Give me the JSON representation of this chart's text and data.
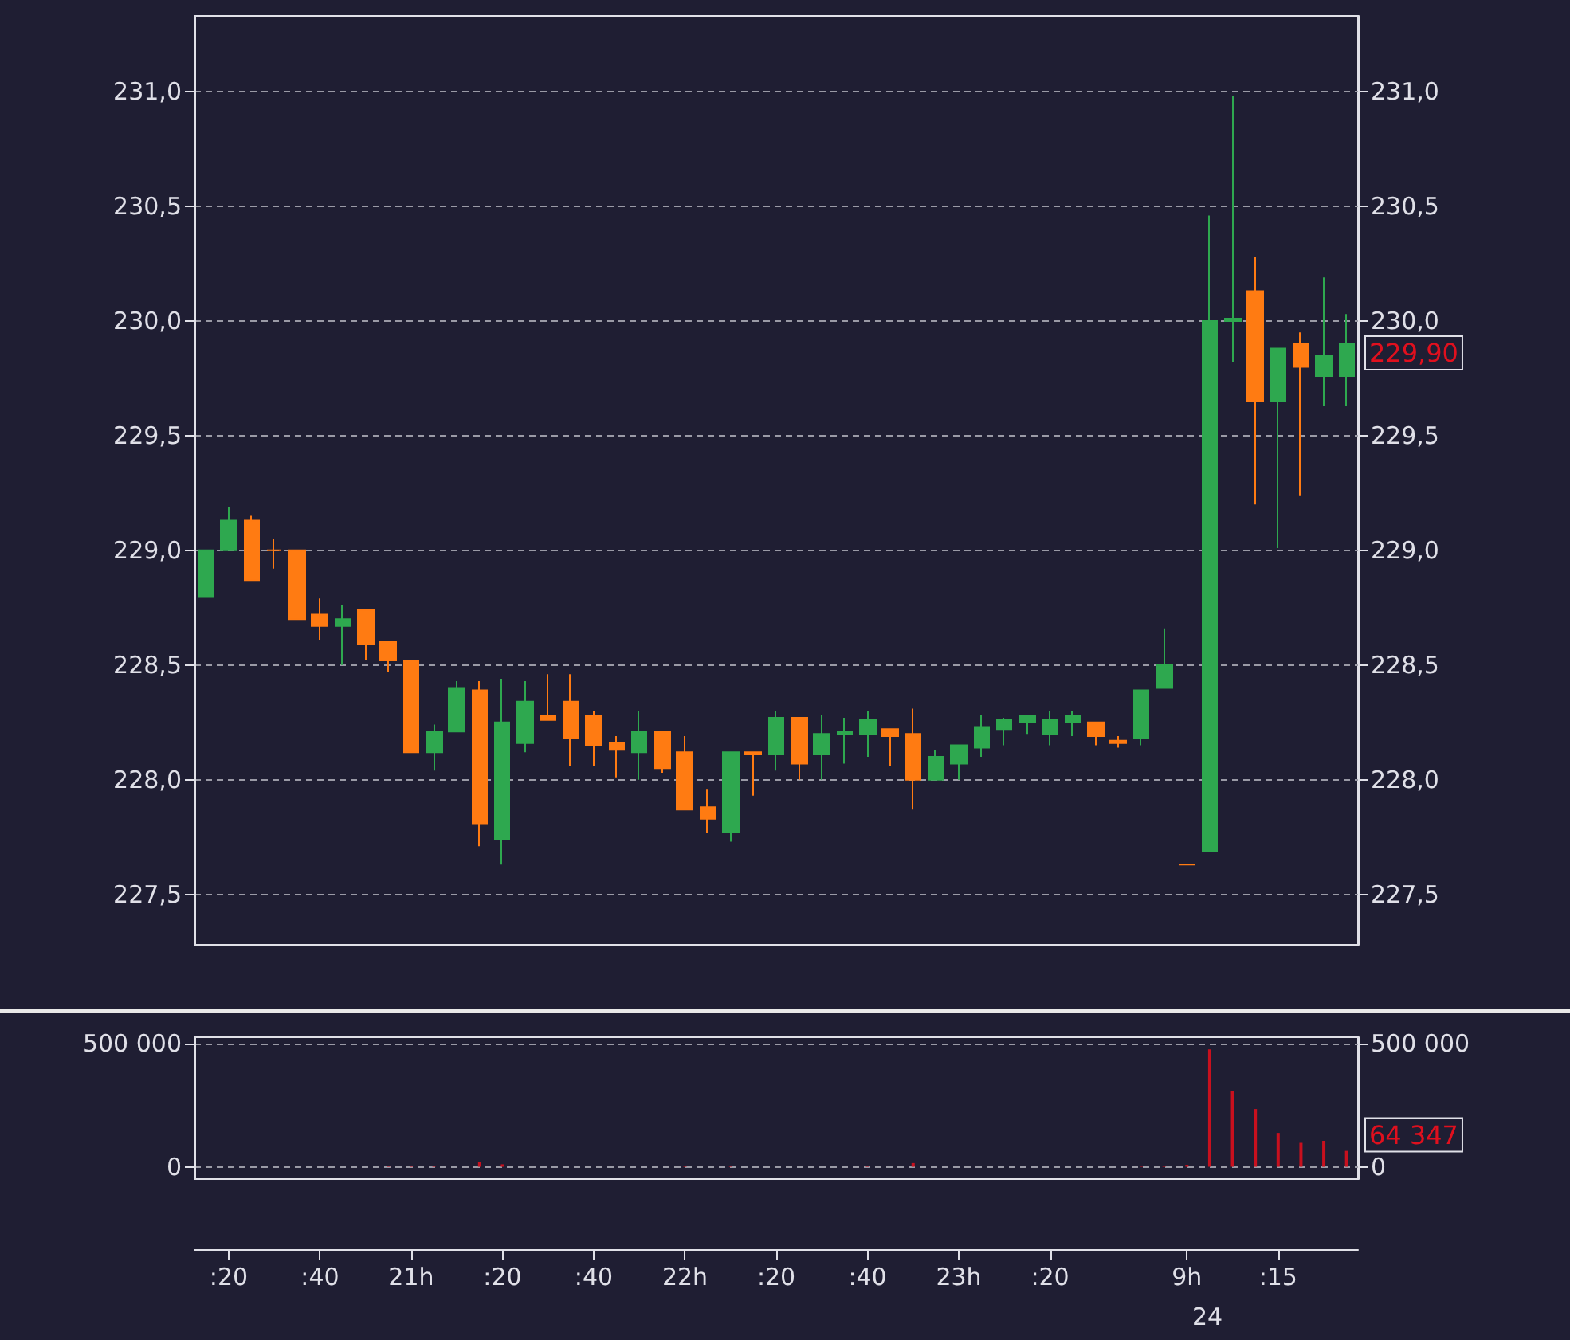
{
  "chart_data": [
    {
      "type": "candlestick",
      "categories": [
        null,
        null,
        null,
        null,
        null,
        null,
        null,
        null,
        null,
        null,
        null,
        null,
        null,
        null,
        null,
        null,
        null,
        null,
        null,
        null,
        null,
        null,
        null,
        null,
        null,
        null,
        null,
        null,
        null,
        null,
        null,
        null,
        null,
        null,
        null,
        null,
        null,
        null,
        null,
        null,
        null,
        null,
        null,
        null,
        null,
        null,
        null,
        null,
        null,
        null,
        null
      ],
      "ohlc": [
        [
          228.8,
          229.0,
          228.8,
          229.0
        ],
        [
          229.0,
          229.19,
          229.0,
          229.13
        ],
        [
          229.13,
          229.15,
          228.87,
          228.87
        ],
        [
          229.0,
          229.05,
          228.92,
          229.0
        ],
        [
          229.0,
          229.0,
          228.7,
          228.7
        ],
        [
          228.72,
          228.79,
          228.61,
          228.67
        ],
        [
          228.67,
          228.76,
          228.5,
          228.7
        ],
        [
          228.74,
          228.74,
          228.52,
          228.59
        ],
        [
          228.6,
          228.6,
          228.47,
          228.52
        ],
        [
          228.52,
          228.52,
          228.12,
          228.12
        ],
        [
          228.12,
          228.24,
          228.04,
          228.21
        ],
        [
          228.21,
          228.43,
          228.21,
          228.4
        ],
        [
          228.39,
          228.43,
          227.71,
          227.81
        ],
        [
          227.74,
          228.44,
          227.63,
          228.25
        ],
        [
          228.16,
          228.43,
          228.12,
          228.34
        ],
        [
          228.28,
          228.46,
          228.26,
          228.26
        ],
        [
          228.34,
          228.46,
          228.06,
          228.18
        ],
        [
          228.28,
          228.3,
          228.06,
          228.15
        ],
        [
          228.16,
          228.19,
          228.01,
          228.13
        ],
        [
          228.12,
          228.3,
          228.0,
          228.21
        ],
        [
          228.21,
          228.21,
          228.03,
          228.05
        ],
        [
          228.12,
          228.19,
          227.87,
          227.87
        ],
        [
          227.88,
          227.96,
          227.77,
          227.83
        ],
        [
          227.77,
          228.12,
          227.73,
          228.12
        ],
        [
          228.12,
          228.12,
          227.93,
          228.11
        ],
        [
          228.11,
          228.3,
          228.04,
          228.27
        ],
        [
          228.27,
          228.27,
          228.0,
          228.07
        ],
        [
          228.11,
          228.28,
          228.0,
          228.2
        ],
        [
          228.2,
          228.27,
          228.07,
          228.21
        ],
        [
          228.2,
          228.3,
          228.1,
          228.26
        ],
        [
          228.22,
          228.22,
          228.06,
          228.19
        ],
        [
          228.2,
          228.31,
          227.87,
          228.0
        ],
        [
          228.0,
          228.13,
          228.0,
          228.1
        ],
        [
          228.07,
          228.15,
          228.0,
          228.15
        ],
        [
          228.14,
          228.28,
          228.1,
          228.23
        ],
        [
          228.22,
          228.27,
          228.15,
          228.26
        ],
        [
          228.25,
          228.28,
          228.2,
          228.28
        ],
        [
          228.2,
          228.3,
          228.15,
          228.26
        ],
        [
          228.25,
          228.3,
          228.19,
          228.28
        ],
        [
          228.25,
          228.25,
          228.15,
          228.19
        ],
        [
          228.17,
          228.19,
          228.14,
          228.16
        ],
        [
          228.18,
          228.39,
          228.15,
          228.39
        ],
        [
          228.4,
          228.66,
          228.4,
          228.5
        ],
        [
          227.63,
          227.63,
          227.63,
          227.63
        ],
        [
          227.69,
          230.46,
          227.69,
          230.0
        ],
        [
          230.0,
          230.98,
          229.82,
          230.01
        ],
        [
          230.13,
          230.28,
          229.2,
          229.65
        ],
        [
          229.65,
          229.88,
          229.01,
          229.88
        ],
        [
          229.9,
          229.95,
          229.24,
          229.8
        ],
        [
          229.76,
          230.19,
          229.63,
          229.85
        ],
        [
          229.76,
          230.03,
          229.63,
          229.9
        ]
      ],
      "colors": [
        "#2ea84f",
        "#2ea84f",
        "#ff7b12",
        "#ff7b12",
        "#ff7b12",
        "#ff7b12",
        "#2ea84f",
        "#ff7b12",
        "#ff7b12",
        "#ff7b12",
        "#2ea84f",
        "#2ea84f",
        "#ff7b12",
        "#2ea84f",
        "#2ea84f",
        "#ff7b12",
        "#ff7b12",
        "#ff7b12",
        "#ff7b12",
        "#2ea84f",
        "#ff7b12",
        "#ff7b12",
        "#ff7b12",
        "#2ea84f",
        "#ff7b12",
        "#2ea84f",
        "#ff7b12",
        "#2ea84f",
        "#2ea84f",
        "#2ea84f",
        "#ff7b12",
        "#ff7b12",
        "#2ea84f",
        "#2ea84f",
        "#2ea84f",
        "#2ea84f",
        "#2ea84f",
        "#2ea84f",
        "#2ea84f",
        "#ff7b12",
        "#ff7b12",
        "#2ea84f",
        "#2ea84f",
        "#ff7b12",
        "#2ea84f",
        "#2ea84f",
        "#ff7b12",
        "#2ea84f",
        "#ff7b12",
        "#2ea84f",
        "#2ea84f"
      ],
      "ylim": [
        227.28,
        231.33
      ],
      "yticks": [
        {
          "value": 227.5,
          "label": "227,5"
        },
        {
          "value": 228,
          "label": "228,0"
        },
        {
          "value": 228.5,
          "label": "228,5"
        },
        {
          "value": 229,
          "label": "229,0"
        },
        {
          "value": 229.5,
          "label": "229,5"
        },
        {
          "value": 230,
          "label": "230,0"
        },
        {
          "value": 230.5,
          "label": "230,5"
        },
        {
          "value": 231,
          "label": "231,0"
        }
      ],
      "y2lim": [
        227.28,
        231.33
      ],
      "y2ticks": [
        {
          "value": 227.5,
          "label": "227,5"
        },
        {
          "value": 228,
          "label": "228,0"
        },
        {
          "value": 228.5,
          "label": "228,5"
        },
        {
          "value": 229,
          "label": "229,0"
        },
        {
          "value": 229.5,
          "label": "229,5"
        },
        {
          "value": 230,
          "label": "230,0"
        },
        {
          "value": 230.5,
          "label": "230,5"
        },
        {
          "value": 231,
          "label": "231,0"
        }
      ],
      "grid": "y",
      "tick_labels": "y",
      "annotations": [
        "229,90"
      ]
    },
    {
      "type": "bar",
      "categories": [
        null,
        ":20",
        null,
        null,
        null,
        ":40",
        null,
        null,
        null,
        "21h",
        null,
        null,
        null,
        ":20",
        null,
        null,
        null,
        ":40",
        null,
        null,
        null,
        "22h",
        null,
        null,
        null,
        ":20",
        null,
        null,
        null,
        ":40",
        null,
        null,
        null,
        "23h",
        null,
        null,
        null,
        ":20",
        null,
        null,
        null,
        null,
        null,
        "9h",
        null,
        null,
        null,
        ":15",
        null,
        null,
        null
      ],
      "series": [
        {
          "color": "#c8101e",
          "values": [
            0,
            0,
            0,
            0,
            0,
            0,
            0,
            0,
            5000,
            4000,
            4000,
            0,
            20000,
            10000,
            0,
            0,
            0,
            0,
            0,
            0,
            0,
            5000,
            0,
            5000,
            0,
            0,
            0,
            0,
            0,
            5000,
            0,
            15000,
            0,
            0,
            0,
            0,
            0,
            0,
            0,
            0,
            0,
            5000,
            5000,
            8000,
            476000,
            306000,
            234000,
            137000,
            97000,
            105000,
            64347
          ]
        }
      ],
      "ylim": [
        -50000,
        525000
      ],
      "yticks": [
        0,
        {
          "value": 500000,
          "label": "500 000"
        }
      ],
      "y2lim": [
        -50000,
        525000
      ],
      "y2ticks": [
        0,
        {
          "value": 500000,
          "label": "500 000"
        }
      ],
      "grid": "y",
      "annotations": [
        "64 347",
        "24"
      ]
    }
  ]
}
